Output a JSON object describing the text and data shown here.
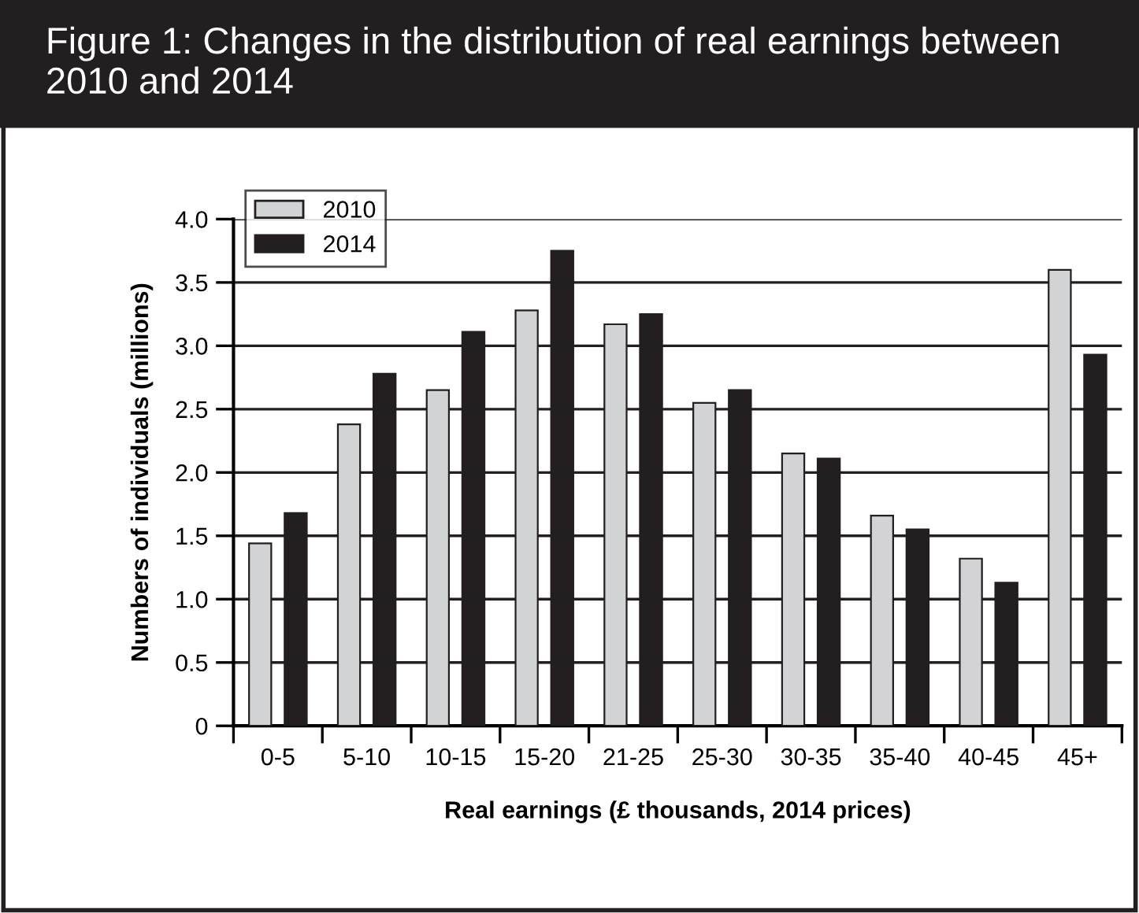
{
  "chart_data": {
    "type": "bar",
    "title": "Figure 1: Changes in the distribution of real earnings between 2010 and 2014",
    "xlabel": "Real earnings (£ thousands, 2014 prices)",
    "ylabel": "Numbers of individuals (millions)",
    "categories": [
      "0-5",
      "5-10",
      "10-15",
      "15-20",
      "21-25",
      "25-30",
      "30-35",
      "35-40",
      "40-45",
      "45+"
    ],
    "series": [
      {
        "name": "2010",
        "color": "#d1d3d4",
        "values": [
          1.44,
          2.38,
          2.65,
          3.28,
          3.17,
          2.55,
          2.15,
          1.66,
          1.32,
          3.6
        ]
      },
      {
        "name": "2014",
        "color": "#231f20",
        "values": [
          1.68,
          2.78,
          3.11,
          3.75,
          3.25,
          2.65,
          2.11,
          1.55,
          1.13,
          2.93
        ]
      }
    ],
    "ylim": [
      0,
      4.0
    ],
    "yticks": [
      {
        "value": 0,
        "label": "0"
      },
      {
        "value": 0.5,
        "label": "0.5"
      },
      {
        "value": 1.0,
        "label": "1.0"
      },
      {
        "value": 1.5,
        "label": "1.5"
      },
      {
        "value": 2.0,
        "label": "2.0"
      },
      {
        "value": 2.5,
        "label": "2.5"
      },
      {
        "value": 3.0,
        "label": "3.0"
      },
      {
        "value": 3.5,
        "label": "3.5"
      },
      {
        "value": 4.0,
        "label": "4.0"
      }
    ],
    "grid": "y",
    "legend": "top left"
  }
}
